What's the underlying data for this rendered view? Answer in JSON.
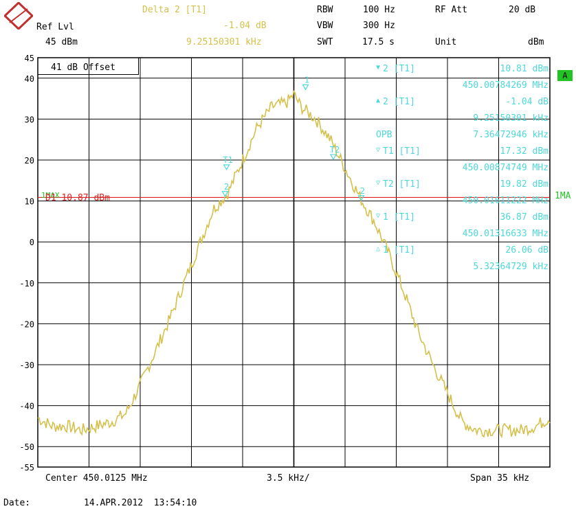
{
  "header": {
    "ref_lvl_label": "Ref Lvl",
    "ref_lvl_value": "45 dBm",
    "delta_title": "Delta 2 [T1]",
    "delta_level": "-1.04 dB",
    "delta_freq": "9.25150301 kHz",
    "rbw_label": "RBW",
    "rbw_value": "100 Hz",
    "vbw_label": "VBW",
    "vbw_value": "300 Hz",
    "swt_label": "SWT",
    "swt_value": "17.5 s",
    "rfatt_label": "RF Att",
    "rfatt_value": "20 dB",
    "unit_label": "Unit",
    "unit_value": "dBm"
  },
  "offset_label": "41 dB Offset",
  "a_indicator": "A",
  "trace_label": "1MA",
  "trace_label_left": "1MAX",
  "display_line_label": "D1 10.87 dBm",
  "marker_table": [
    {
      "sym": "▼",
      "name": "2 [T1]",
      "value": "10.81 dBm"
    },
    {
      "sym": "",
      "name": "",
      "value": "450.00784269 MHz"
    },
    {
      "sym": "▲",
      "name": "2 [T1]",
      "value": "-1.04 dB"
    },
    {
      "sym": "",
      "name": "",
      "value": "9.25150301 kHz"
    },
    {
      "sym": "",
      "name": "OPB",
      "value": "7.36472946 kHz"
    },
    {
      "sym": "▽",
      "name": "T1 [T1]",
      "value": "17.32 dBm"
    },
    {
      "sym": "",
      "name": "",
      "value": "450.00874749 MHz"
    },
    {
      "sym": "▽",
      "name": "T2 [T1]",
      "value": "19.82 dBm"
    },
    {
      "sym": "",
      "name": "",
      "value": "450.01611222 MHz"
    },
    {
      "sym": "▽",
      "name": "1 [T1]",
      "value": "36.87 dBm"
    },
    {
      "sym": "",
      "name": "",
      "value": "450.01316633 MHz"
    },
    {
      "sym": "△",
      "name": "1 [T1]",
      "value": "26.06 dB"
    },
    {
      "sym": "",
      "name": "",
      "value": "5.32364729 kHz"
    }
  ],
  "footer": {
    "center": "Center 450.0125 MHz",
    "div": "3.5 kHz/",
    "span": "Span 35 kHz",
    "date_label": "Date:",
    "date_value": "14.APR.2012  13:54:10"
  },
  "colors": {
    "trace": "#d4c04a",
    "marker": "#4dd9d9",
    "display_line": "#e02020",
    "grid": "#000000",
    "indicator": "#22c322"
  },
  "chart_data": {
    "type": "line",
    "title": "",
    "xlabel": "",
    "ylabel": "",
    "xlim_kHz_offset": [
      -17.5,
      17.5
    ],
    "ylim": [
      -55,
      45
    ],
    "y_ticks": [
      45,
      40,
      30,
      20,
      10,
      0,
      -10,
      -20,
      -30,
      -40,
      -50,
      -55
    ],
    "display_line_dBm": 10.87,
    "series": [
      {
        "x": [
          -17.5,
          -16.5,
          -15.5,
          -14.5,
          -13.5,
          -12.5,
          -11.5,
          -10.5,
          -9.5,
          -8.5,
          -7.5,
          -6.5,
          -5.5,
          -4.5,
          -3.5,
          -2.5,
          -1.5,
          -0.5,
          0.0,
          0.5,
          1.5,
          2.5,
          3.5,
          4.5,
          5.5,
          6.5,
          7.5,
          8.5,
          9.5,
          10.5,
          11.5,
          12.5,
          13.5,
          14.5,
          15.5,
          16.5,
          17.5
        ],
        "values": [
          -43,
          -45,
          -45,
          -46,
          -45,
          -44,
          -42,
          -35,
          -27,
          -19,
          -10,
          -1,
          8,
          12,
          20,
          28,
          33,
          34,
          36,
          33,
          30,
          25,
          18,
          11,
          5,
          -3,
          -12,
          -22,
          -30,
          -37,
          -44,
          -46,
          -46,
          -46,
          -46,
          -45,
          -43
        ]
      }
    ],
    "markers": [
      {
        "label": "1",
        "x": 0.8,
        "y": 36.87
      },
      {
        "label": "T1",
        "x": -4.6,
        "y": 17.32
      },
      {
        "label": "T2",
        "x": 2.7,
        "y": 19.82
      },
      {
        "label": "2",
        "x": -4.7,
        "y": 10.81
      },
      {
        "label": "2",
        "x": 4.6,
        "y": 9.8
      }
    ]
  }
}
